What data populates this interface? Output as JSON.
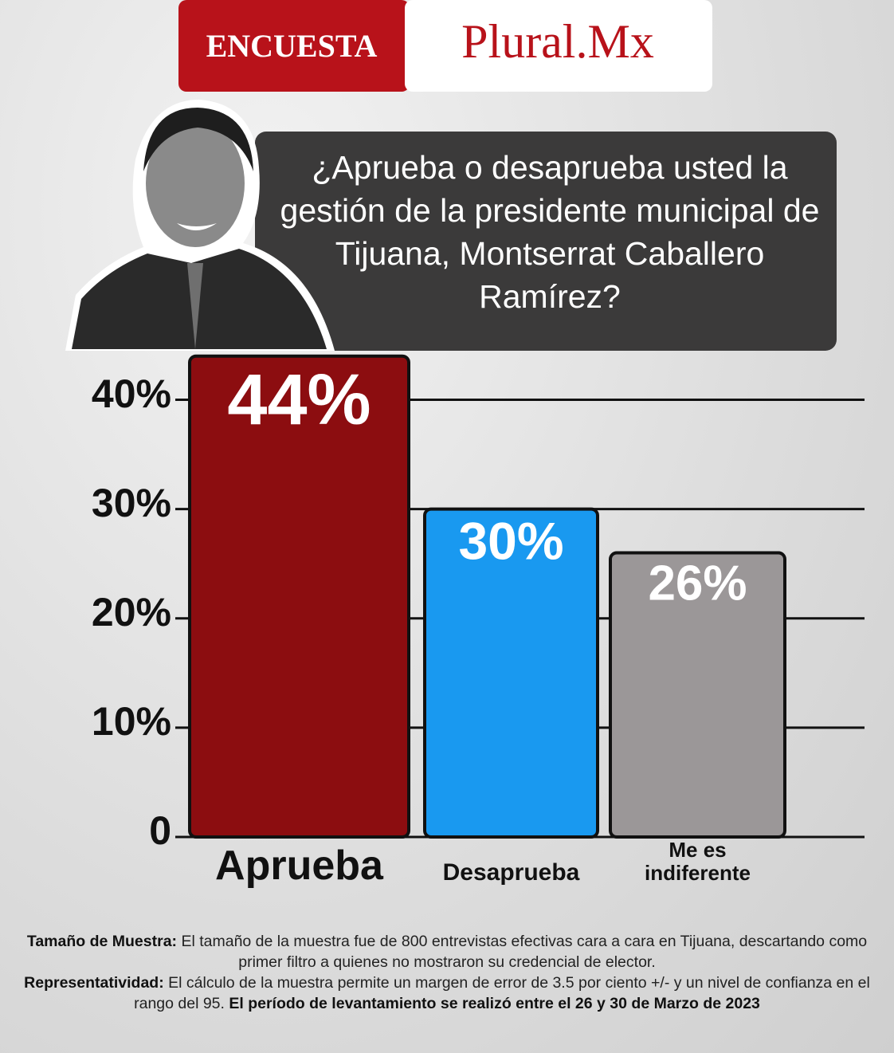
{
  "header": {
    "badge": "ENCUESTA",
    "brand": "Plural.Mx"
  },
  "chart_data": {
    "type": "bar",
    "title": "¿Aprueba o desaprueba usted la gestión de la presidente municipal de Tijuana, Montserrat Caballero Ramírez?",
    "categories": [
      "Aprueba",
      "Desaprueba",
      "Me es indiferente"
    ],
    "values": [
      44,
      30,
      26
    ],
    "value_labels": [
      "44%",
      "30%",
      "26%"
    ],
    "colors": [
      "#8c0d10",
      "#1999f0",
      "#9b9798"
    ],
    "ylim": [
      0,
      45
    ],
    "yticks": [
      0,
      {
        "value": 10,
        "label": "10%"
      },
      {
        "value": 20,
        "label": "20%"
      },
      {
        "value": 30,
        "label": "30%"
      },
      {
        "value": 40,
        "label": "40%"
      }
    ],
    "grid": true
  },
  "footnotes": [
    {
      "label": "Tamaño de Muestra:",
      "text": "El tamaño de la muestra fue de 800 entrevistas efectivas cara a cara en Tijuana, descartando como primer filtro a quienes no mostraron su credencial de elector."
    },
    {
      "label": "Representatividad:",
      "text": "El cálculo de la muestra permite un margen de error de 3.5 por ciento +/- y un nivel de confianza en el rango del 95.",
      "emphasis": "El período de levantamiento se realizó entre el 26 y 30 de Marzo de 2023"
    }
  ]
}
